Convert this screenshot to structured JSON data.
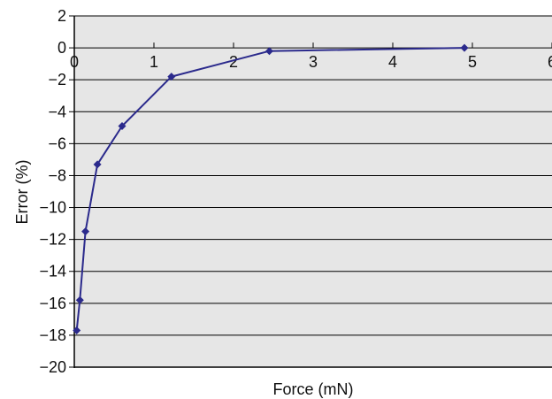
{
  "chart_data": {
    "type": "line",
    "title": "",
    "xlabel": "Force (mN)",
    "ylabel": "Error (%)",
    "xlim": [
      0,
      6
    ],
    "ylim": [
      -20,
      2
    ],
    "x_ticks": [
      0,
      1,
      2,
      3,
      4,
      5,
      6
    ],
    "y_ticks": [
      2,
      0,
      -2,
      -4,
      -6,
      -8,
      -10,
      -12,
      -14,
      -16,
      -18,
      -20
    ],
    "x_tick_labels": [
      "0",
      "1",
      "2",
      "3",
      "4",
      "5",
      "6"
    ],
    "y_tick_labels": [
      "2",
      "0",
      "−2",
      "−4",
      "−6",
      "−8",
      "−10",
      "−12",
      "−14",
      "−16",
      "−18",
      "−20"
    ],
    "grid": "horizontal",
    "legend": "none",
    "series": [
      {
        "color": "#2b2a8c",
        "marker": "diamond",
        "x": [
          0.03,
          0.07,
          0.14,
          0.29,
          0.6,
          1.22,
          2.45,
          4.9
        ],
        "y": [
          -17.7,
          -15.8,
          -11.5,
          -7.3,
          -4.9,
          -1.8,
          -0.2,
          0.0
        ]
      }
    ],
    "colors": {
      "plot_background": "#e6e6e6",
      "gridline": "#000000",
      "series": "#2b2a8c"
    }
  }
}
